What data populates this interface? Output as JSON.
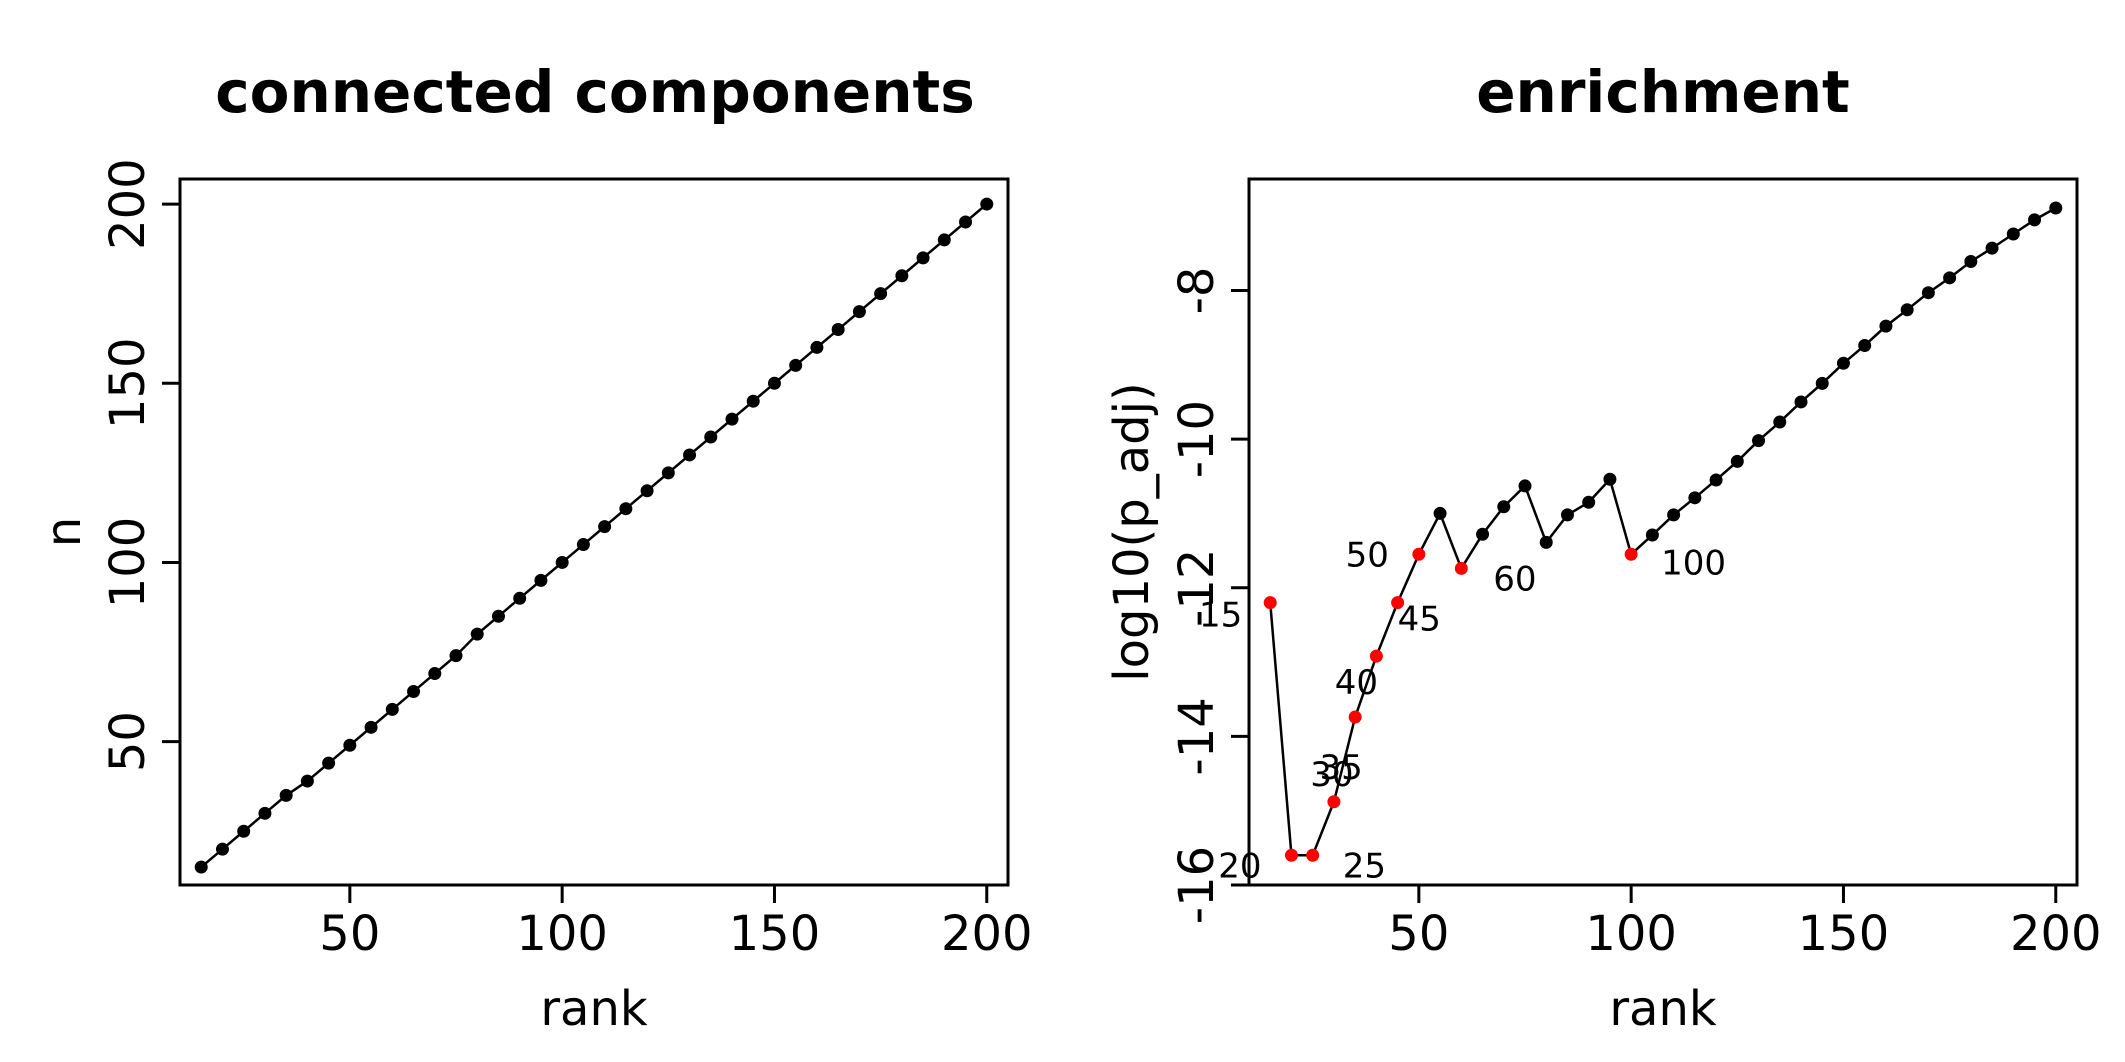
{
  "chart_data": [
    {
      "type": "line",
      "title": "connected components",
      "xlabel": "rank",
      "ylabel": "n",
      "xlim": [
        10,
        205
      ],
      "ylim": [
        10,
        207
      ],
      "xticks": [
        50,
        100,
        150,
        200
      ],
      "yticks": [
        50,
        100,
        150,
        200
      ],
      "grid": false,
      "series": [
        {
          "color": "#000000",
          "x": [
            15,
            20,
            25,
            30,
            35,
            40,
            45,
            50,
            55,
            60,
            65,
            70,
            75,
            80,
            85,
            90,
            95,
            100,
            105,
            110,
            115,
            120,
            125,
            130,
            135,
            140,
            145,
            150,
            155,
            160,
            165,
            170,
            175,
            180,
            185,
            190,
            195,
            200
          ],
          "y": [
            15,
            20,
            25,
            30,
            35,
            39,
            44,
            49,
            54,
            59,
            64,
            69,
            74,
            80,
            85,
            90,
            95,
            100,
            105,
            110,
            115,
            120,
            125,
            130,
            135,
            140,
            145,
            150,
            155,
            160,
            165,
            170,
            175,
            180,
            185,
            190,
            195,
            200
          ]
        }
      ]
    },
    {
      "type": "line",
      "title": "enrichment",
      "xlabel": "rank",
      "ylabel": "log10(p_adj)",
      "xlim": [
        10,
        205
      ],
      "ylim": [
        -16.0,
        -6.5
      ],
      "xticks": [
        50,
        100,
        150,
        200
      ],
      "yticks": [
        -16,
        -14,
        -12,
        -10,
        -8
      ],
      "grid": false,
      "series": [
        {
          "color": "#000000",
          "x": [
            15,
            20,
            25,
            30,
            35,
            40,
            45,
            50,
            55,
            60,
            65,
            70,
            75,
            80,
            85,
            90,
            95,
            100,
            105,
            110,
            115,
            120,
            125,
            130,
            135,
            140,
            145,
            150,
            155,
            160,
            165,
            170,
            175,
            180,
            185,
            190,
            195,
            200
          ],
          "y": [
            -12.2,
            -15.6,
            -15.6,
            -14.88,
            -13.74,
            -12.92,
            -12.2,
            -11.55,
            -11.0,
            -11.74,
            -11.28,
            -10.91,
            -10.63,
            -11.39,
            -11.02,
            -10.85,
            -10.54,
            -11.55,
            -11.29,
            -11.02,
            -10.79,
            -10.55,
            -10.3,
            -10.02,
            -9.77,
            -9.5,
            -9.25,
            -8.98,
            -8.74,
            -8.48,
            -8.26,
            -8.03,
            -7.83,
            -7.61,
            -7.43,
            -7.24,
            -7.05,
            -6.89
          ],
          "highlighted": [
            {
              "x": 15,
              "y": -12.2,
              "label": "15",
              "color": "#ff0000"
            },
            {
              "x": 20,
              "y": -15.6,
              "label": "20",
              "color": "#ff0000"
            },
            {
              "x": 25,
              "y": -15.6,
              "label": "25",
              "color": "#ff0000"
            },
            {
              "x": 30,
              "y": -14.88,
              "label": "30",
              "color": "#ff0000"
            },
            {
              "x": 35,
              "y": -13.74,
              "label": "35",
              "color": "#ff0000"
            },
            {
              "x": 40,
              "y": -12.92,
              "label": "40",
              "color": "#ff0000"
            },
            {
              "x": 45,
              "y": -12.2,
              "label": "45",
              "color": "#ff0000"
            },
            {
              "x": 50,
              "y": -11.55,
              "label": "50",
              "color": "#ff0000"
            },
            {
              "x": 60,
              "y": -11.74,
              "label": "60",
              "color": "#ff0000"
            },
            {
              "x": 100,
              "y": -11.55,
              "label": "100",
              "color": "#ff0000"
            }
          ]
        }
      ]
    }
  ]
}
